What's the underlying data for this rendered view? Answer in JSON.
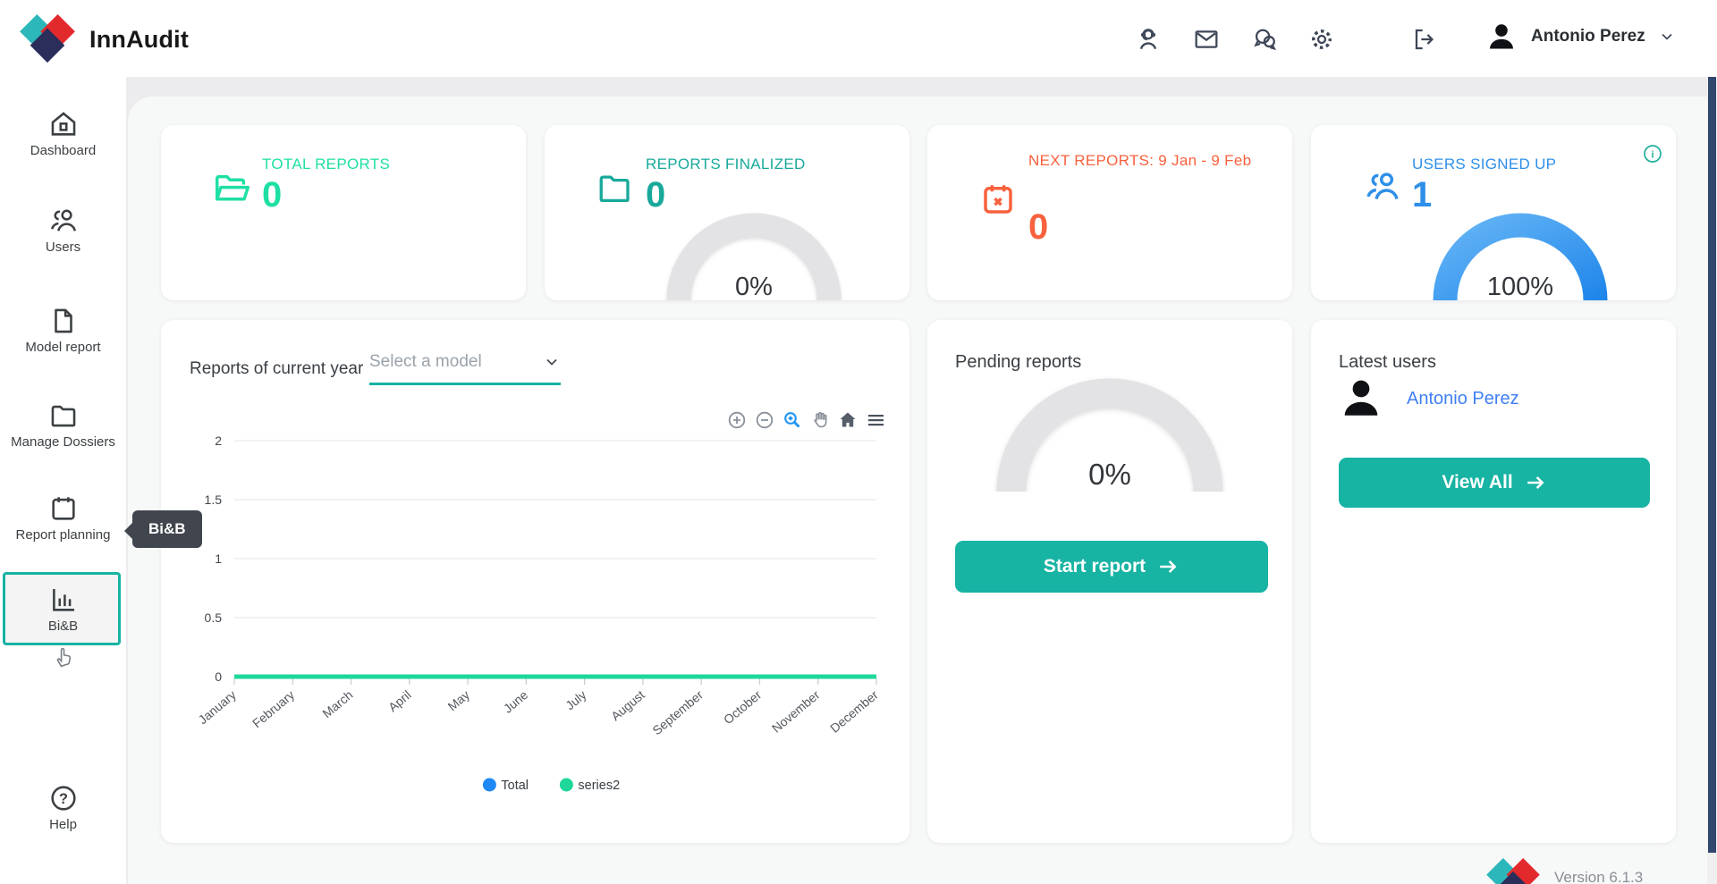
{
  "header": {
    "brand": "InnAudit",
    "user_name": "Antonio Perez",
    "icons": [
      "support-icon",
      "mail-icon",
      "chat-icon",
      "settings-icon",
      "logout-icon"
    ]
  },
  "sidebar": {
    "items": [
      {
        "label": "Dashboard",
        "icon": "home-icon"
      },
      {
        "label": "Users",
        "icon": "users-icon"
      },
      {
        "label": "Model report",
        "icon": "document-icon"
      },
      {
        "label": "Manage Dossiers",
        "icon": "folder-icon"
      },
      {
        "label": "Report planning",
        "icon": "calendar-icon"
      },
      {
        "label": "Bi&B",
        "icon": "bar-chart-icon",
        "active": true
      }
    ],
    "help_label": "Help",
    "tooltip": "Bi&B"
  },
  "stats": {
    "total_reports": {
      "label": "TOTAL REPORTS",
      "value": "0",
      "color": "#1edfa4",
      "icon": "folder-open-icon"
    },
    "reports_finalized": {
      "label": "REPORTS FINALIZED",
      "value": "0",
      "gauge_label": "0%",
      "color": "#18a99b",
      "icon": "folder-icon"
    },
    "next_reports": {
      "label": "NEXT REPORTS: 9 Jan - 9 Feb",
      "value": "0",
      "color": "#f8613d",
      "icon": "calendar-x-icon"
    },
    "users_signed_up": {
      "label": "USERS SIGNED UP",
      "value": "1",
      "gauge_label": "100%",
      "color": "#2e8fe8",
      "icon": "users-icon"
    }
  },
  "chart_card": {
    "title": "Reports of current year",
    "select_placeholder": "Select a model",
    "toolbar": [
      "zoom-in",
      "zoom-out",
      "box-zoom",
      "pan",
      "reset-home",
      "menu"
    ]
  },
  "chart_data": {
    "type": "line",
    "x": [
      "January",
      "February",
      "March",
      "April",
      "May",
      "June",
      "July",
      "August",
      "September",
      "October",
      "November",
      "December"
    ],
    "series": [
      {
        "name": "Total",
        "color": "#1e88f5",
        "values": [
          0,
          0,
          0,
          0,
          0,
          0,
          0,
          0,
          0,
          0,
          0,
          0
        ]
      },
      {
        "name": "series2",
        "color": "#1fd79b",
        "values": [
          0,
          0,
          0,
          0,
          0,
          0,
          0,
          0,
          0,
          0,
          0,
          0
        ]
      }
    ],
    "ylim": [
      0,
      2
    ],
    "yticks": [
      0,
      0.5,
      1,
      1.5,
      2
    ],
    "grid": true,
    "legend_position": "bottom"
  },
  "pending_card": {
    "title": "Pending reports",
    "gauge_label": "0%",
    "button_label": "Start report"
  },
  "latest_users_card": {
    "title": "Latest users",
    "user_link": "Antonio Perez",
    "button_label": "View All"
  },
  "footer": {
    "version": "Version 6.1.3"
  },
  "colors": {
    "accent_teal": "#17b3a3",
    "bright_green": "#1edfa4",
    "muted_teal": "#18a99b",
    "orange": "#f8613d",
    "blue": "#2e8fe8",
    "link_blue": "#4080f5",
    "gauge_grey": "#e3e3e5",
    "tooltip_bg": "#41464e",
    "scrollbar_thumb": "#31486e"
  }
}
